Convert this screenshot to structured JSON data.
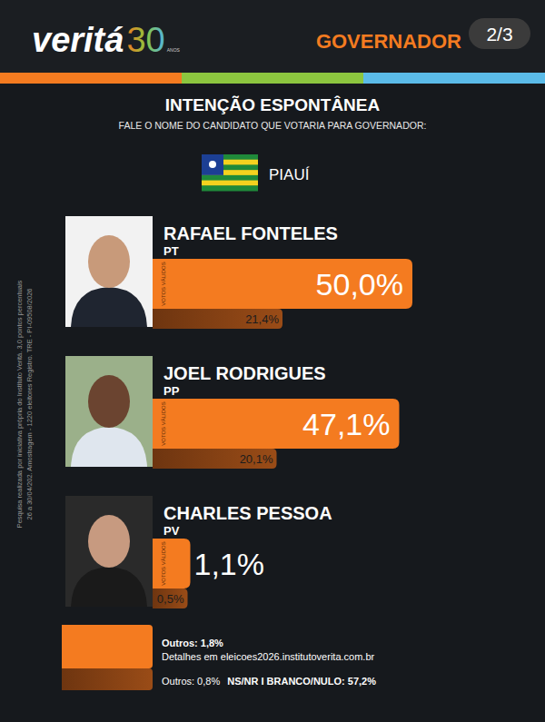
{
  "header": {
    "logo": "veritá",
    "logo_number": "30",
    "logo_sub": "ANOS",
    "section": "GOVERNADOR",
    "page": "2/3"
  },
  "chart_data": {
    "type": "bar",
    "orientation": "horizontal",
    "title": "INTENÇÃO ESPONTÂNEA",
    "subtitle": "FALE O NOME DO CANDIDATO QUE VOTARIA PARA GOVERNADOR:",
    "state": "PIAUÍ",
    "categories": [
      "RAFAEL FONTELES",
      "JOEL RODRIGUES",
      "CHARLES PESSOA"
    ],
    "parties": [
      "PT",
      "PP",
      "PV"
    ],
    "series": [
      {
        "name": "VOTOS VÁLIDOS",
        "color": "#f47b20",
        "values": [
          50.0,
          47.1,
          1.1
        ],
        "value_labels": [
          "50,0%",
          "47,1%",
          "1,1%"
        ]
      },
      {
        "color": "#9a4c17",
        "values": [
          21.4,
          20.1,
          0.5
        ],
        "value_labels": [
          "21,4%",
          "20,1%",
          "0,5%"
        ]
      }
    ],
    "xlim": [
      0,
      50
    ],
    "data_labels": true,
    "tick_labels": false,
    "grid": false
  },
  "footer": {
    "others_valid": "Outros: 1,8%",
    "details": "Detalhes em eleicoes2026.institutoverita.com.br",
    "others_total": "Outros: 0,8%",
    "ns_nr": "NS/NR  I  BRANCO/NULO: 57,2%"
  },
  "source_note": [
    "Pesquisa realizada por iniciativa própria do Instituto Veritá. 3,0 pontos percentuais",
    "26 a 30/04/202. Amostragem - 1220 eleitores Registro. TRE - PI-09508/2026"
  ]
}
